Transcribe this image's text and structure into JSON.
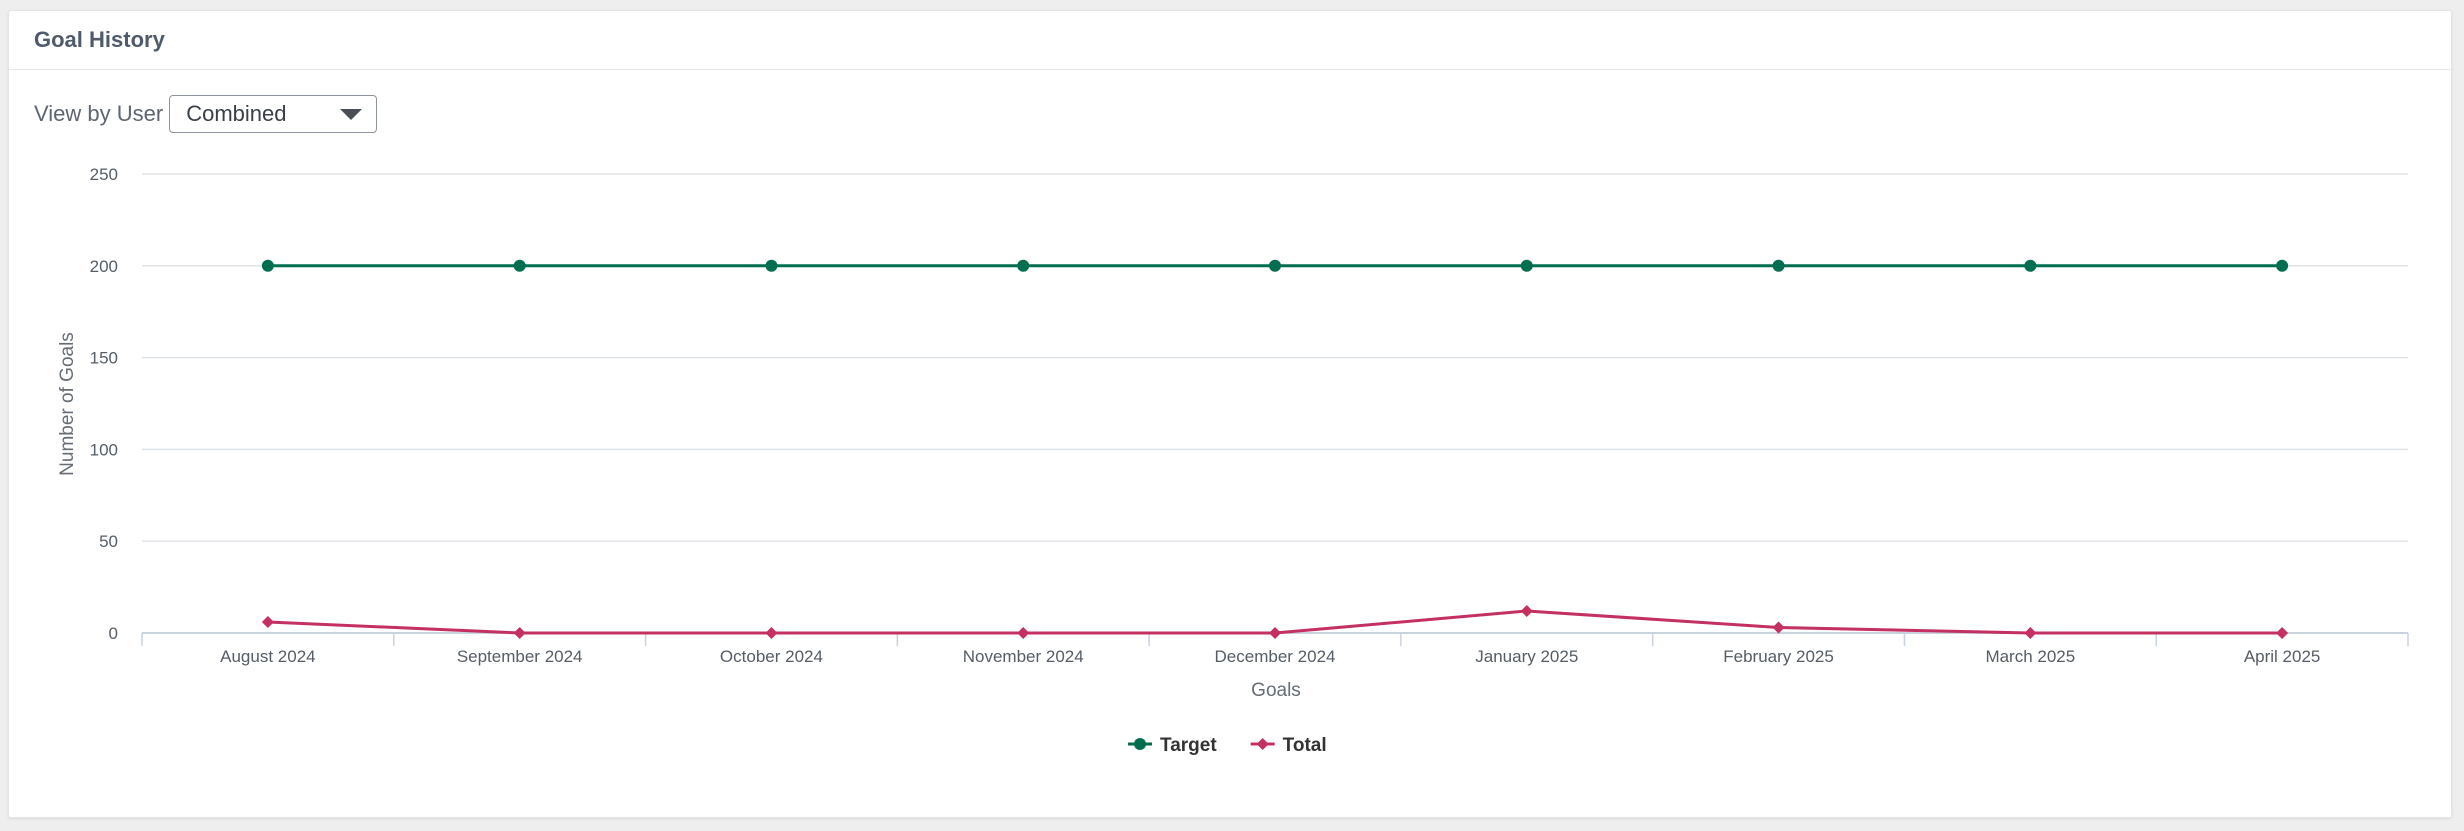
{
  "panel": {
    "title": "Goal History"
  },
  "filter": {
    "label": "View by User",
    "selected": "Combined"
  },
  "chart_data": {
    "type": "line",
    "title": "",
    "xlabel": "Goals",
    "ylabel": "Number of Goals",
    "ylim": [
      0,
      250
    ],
    "yticks": [
      0,
      50,
      100,
      150,
      200,
      250
    ],
    "grid": true,
    "legend_position": "bottom-center",
    "categories": [
      "August 2024",
      "September 2024",
      "October 2024",
      "November 2024",
      "December 2024",
      "January 2025",
      "February 2025",
      "March 2025",
      "April 2025"
    ],
    "series": [
      {
        "name": "Target",
        "color": "#006e4f",
        "marker": "circle",
        "values": [
          200,
          200,
          200,
          200,
          200,
          200,
          200,
          200,
          200
        ]
      },
      {
        "name": "Total",
        "color": "#c4305f",
        "marker": "diamond",
        "values": [
          6,
          0,
          0,
          0,
          0,
          12,
          3,
          0,
          0
        ]
      }
    ]
  }
}
